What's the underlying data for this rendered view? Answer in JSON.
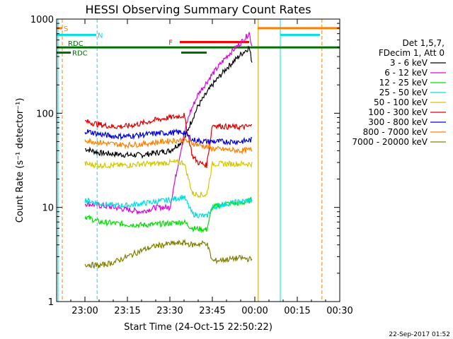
{
  "chart_data": {
    "type": "line",
    "title": "HESSI Observing Summary Count Rates",
    "xlabel": "Start Time (24-Oct-15 22:50:22)",
    "ylabel": "Count Rate (s⁻¹ detector⁻¹)",
    "y_scale": "log",
    "ylim": [
      1,
      1000
    ],
    "xlim_minutes_after_start": [
      0,
      100
    ],
    "x_tick_labels": [
      "23:00",
      "23:15",
      "23:30",
      "23:45",
      "00:00",
      "00:15",
      "00:30"
    ],
    "x_tick_minutes": [
      10,
      25,
      40,
      55,
      70,
      85,
      100
    ],
    "y_tick_labels": [
      "1",
      "10",
      "100",
      "1000"
    ],
    "y_tick_values": [
      1,
      10,
      100,
      1000
    ],
    "legend_header": [
      "Det 1,5,7,",
      "FDecim 1, Att 0"
    ],
    "series": [
      {
        "name": "3 - 6 keV",
        "color": "#000000",
        "x": [
          10,
          15,
          20,
          25,
          30,
          35,
          40,
          45,
          47,
          50,
          55,
          60,
          65,
          68,
          68.5,
          69
        ],
        "values": [
          42,
          38,
          37,
          36,
          36,
          38,
          40,
          52,
          75,
          120,
          200,
          300,
          420,
          500,
          420,
          350
        ]
      },
      {
        "name": "6 - 12 keV",
        "color": "#e000e0",
        "x": [
          10,
          20,
          30,
          35,
          40,
          43,
          45,
          47,
          50,
          55,
          60,
          65,
          67,
          68,
          68.5,
          69
        ],
        "values": [
          11,
          10,
          9,
          10,
          10,
          30,
          60,
          100,
          160,
          260,
          400,
          560,
          650,
          720,
          600,
          520
        ]
      },
      {
        "name": "12 - 25 keV",
        "color": "#00e000",
        "x": [
          10,
          15,
          20,
          25,
          30,
          35,
          40,
          45,
          48,
          53,
          55,
          60,
          65,
          69
        ],
        "values": [
          8,
          7,
          6.8,
          6.6,
          6.5,
          6.6,
          6.8,
          7,
          6,
          5.8,
          10,
          11,
          11,
          12
        ]
      },
      {
        "name": "25 - 50 keV",
        "color": "#00e0e0",
        "x": [
          10,
          15,
          20,
          25,
          30,
          35,
          40,
          45,
          48,
          53,
          55,
          60,
          65,
          69
        ],
        "values": [
          12,
          11,
          10.5,
          10.5,
          11,
          11.5,
          12,
          13,
          8.5,
          8,
          10,
          11,
          11.5,
          12
        ]
      },
      {
        "name": "50 - 100 keV",
        "color": "#d4c800",
        "x": [
          10,
          15,
          20,
          25,
          30,
          35,
          40,
          45,
          48,
          53,
          55,
          60,
          65,
          69
        ],
        "values": [
          29,
          28,
          28,
          28,
          29,
          29,
          30,
          30,
          14,
          13.5,
          29,
          29,
          29,
          29
        ]
      },
      {
        "name": "100 - 300 keV",
        "color": "#e00000",
        "x": [
          10,
          15,
          20,
          25,
          30,
          35,
          40,
          45,
          48,
          50,
          53,
          55,
          60,
          65,
          69
        ],
        "values": [
          82,
          76,
          72,
          73,
          78,
          85,
          90,
          95,
          35,
          30,
          28,
          75,
          72,
          71,
          73
        ]
      },
      {
        "name": "300 - 800 keV",
        "color": "#0000e0",
        "x": [
          10,
          15,
          20,
          25,
          30,
          35,
          40,
          45,
          48,
          53,
          55,
          60,
          65,
          69
        ],
        "values": [
          65,
          60,
          57,
          57,
          59,
          61,
          62,
          63,
          52,
          50,
          50,
          50,
          50,
          52
        ]
      },
      {
        "name": "800 - 7000 keV",
        "color": "#ff8000",
        "x": [
          10,
          15,
          20,
          25,
          30,
          35,
          40,
          45,
          48,
          53,
          55,
          60,
          65,
          69
        ],
        "values": [
          52,
          49,
          47,
          46,
          47,
          49,
          51,
          52,
          48,
          44,
          42,
          41,
          40,
          41
        ]
      },
      {
        "name": "7000 - 20000 keV",
        "color": "#808000",
        "x": [
          10,
          15,
          20,
          25,
          30,
          35,
          40,
          45,
          48,
          53,
          55,
          60,
          65,
          69
        ],
        "values": [
          2.5,
          2.4,
          2.6,
          3,
          3.5,
          3.9,
          4.1,
          4.2,
          4,
          4.2,
          2.7,
          2.8,
          2.9,
          2.8
        ]
      }
    ],
    "status_bars": [
      {
        "label": "S",
        "color": "#ff8000",
        "x": [
          0,
          2
        ],
        "level": 800
      },
      {
        "label": "N",
        "color": "#00e0e0",
        "x": [
          0,
          14
        ],
        "level": 680
      },
      {
        "label": "F",
        "color": "#ff0000",
        "x": [
          43.5,
          68
        ],
        "level": 570
      },
      {
        "label": "RDC",
        "color": "#007000",
        "x": [
          0,
          100
        ],
        "level": 500
      },
      {
        "label": "RDC",
        "color": "#007000",
        "x": [
          0,
          5
        ],
        "level": 440
      },
      {
        "label": "",
        "color": "#007000",
        "x": [
          44,
          53
        ],
        "level": 440
      },
      {
        "label": "",
        "color": "#ff8000",
        "x": [
          71,
          100
        ],
        "level": 800
      },
      {
        "label": "",
        "color": "#00e0e0",
        "x": [
          79,
          93
        ],
        "level": 680
      }
    ],
    "vertical_markers": [
      {
        "x": 0.5,
        "color": "#00e0e0",
        "style": "solid"
      },
      {
        "x": 2,
        "color": "#ff8000",
        "style": "dashed"
      },
      {
        "x": 14.3,
        "color": "#00e0e0",
        "style": "dashed"
      },
      {
        "x": 71.2,
        "color": "#d4a000",
        "style": "solid"
      },
      {
        "x": 79,
        "color": "#00e0e0",
        "style": "solid"
      },
      {
        "x": 93.7,
        "color": "#ff8000",
        "style": "dashed"
      }
    ],
    "grid": false,
    "legend_position": "right"
  },
  "footer_timestamp": "22-Sep-2017 01:52"
}
